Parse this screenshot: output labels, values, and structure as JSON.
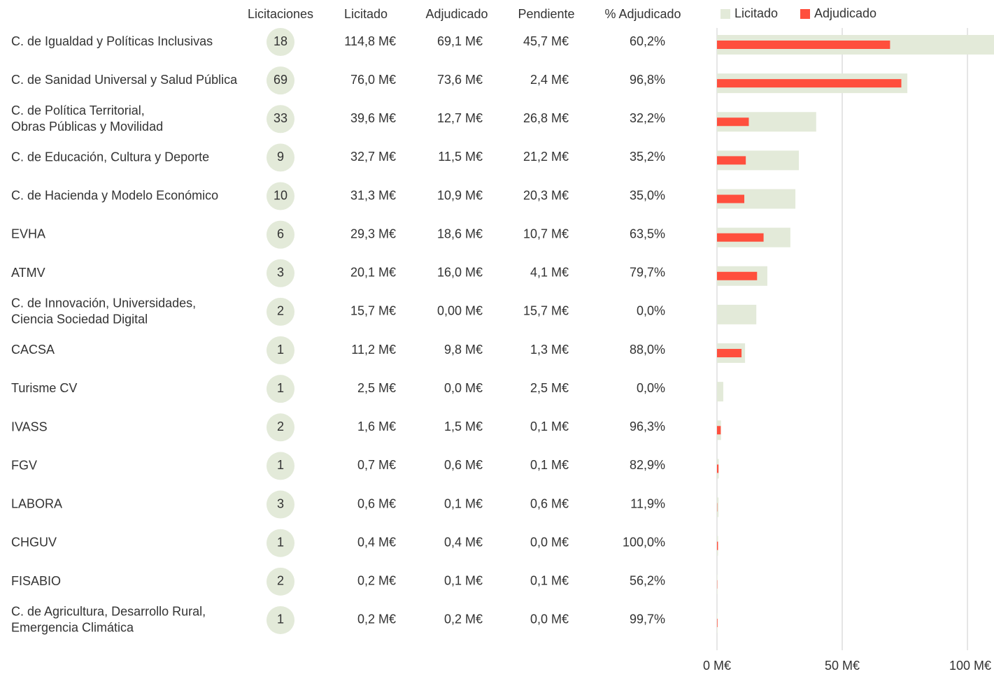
{
  "chart_data": {
    "type": "bar",
    "orientation": "horizontal",
    "headers": [
      "Licitaciones",
      "Licitado",
      "Adjudicado",
      "Pendiente",
      "% Adjudicado"
    ],
    "categories": [
      [
        "C. de Igualdad y Políticas Inclusivas"
      ],
      [
        "C. de Sanidad Universal y Salud Pública"
      ],
      [
        "C. de Política Territorial,",
        "Obras Públicas y Movilidad"
      ],
      [
        "C. de Educación, Cultura y Deporte"
      ],
      [
        "C. de Hacienda y Modelo Económico"
      ],
      [
        "EVHA"
      ],
      [
        "ATMV"
      ],
      [
        "C. de Innovación, Universidades,",
        "Ciencia Sociedad Digital"
      ],
      [
        "CACSA"
      ],
      [
        "Turisme CV"
      ],
      [
        "IVASS"
      ],
      [
        "FGV"
      ],
      [
        "LABORA"
      ],
      [
        "CHGUV"
      ],
      [
        "FISABIO"
      ],
      [
        "C. de Agricultura, Desarrollo Rural,",
        "Emergencia Climática"
      ]
    ],
    "licitaciones": [
      18,
      69,
      33,
      9,
      10,
      6,
      3,
      2,
      1,
      1,
      2,
      1,
      3,
      1,
      2,
      1
    ],
    "series": [
      {
        "name": "Licitado",
        "color": "#e3ead9",
        "values": [
          114.8,
          76.0,
          39.6,
          32.7,
          31.3,
          29.3,
          20.1,
          15.7,
          11.2,
          2.5,
          1.6,
          0.7,
          0.6,
          0.4,
          0.2,
          0.2
        ],
        "value_labels": [
          "114,8 M€",
          "76,0 M€",
          "39,6 M€",
          "32,7 M€",
          "31,3 M€",
          "29,3 M€",
          "20,1 M€",
          "15,7 M€",
          "11,2 M€",
          "2,5 M€",
          "1,6 M€",
          "0,7 M€",
          "0,6 M€",
          "0,4 M€",
          "0,2 M€",
          "0,2 M€"
        ]
      },
      {
        "name": "Adjudicado",
        "color": "#ff4f3d",
        "values": [
          69.1,
          73.6,
          12.7,
          11.5,
          10.9,
          18.6,
          16.0,
          0,
          9.8,
          0,
          1.5,
          0.6,
          0.1,
          0.4,
          0.1,
          0.2
        ],
        "value_labels": [
          "69,1 M€",
          "73,6 M€",
          "12,7 M€",
          "11,5 M€",
          "10,9 M€",
          "18,6 M€",
          "16,0 M€",
          "0,00 M€",
          "9,8 M€",
          "0,0 M€",
          "1,5 M€",
          "0,6 M€",
          "0,1 M€",
          "0,4 M€",
          "0,1 M€",
          "0,2 M€"
        ]
      }
    ],
    "pendiente": [
      "45,7 M€",
      "2,4 M€",
      "26,8 M€",
      "21,2 M€",
      "20,3 M€",
      "10,7 M€",
      "4,1 M€",
      "15,7 M€",
      "1,3 M€",
      "2,5 M€",
      "0,1 M€",
      "0,1 M€",
      "0,6 M€",
      "0,0 M€",
      "0,1 M€",
      "0,0 M€"
    ],
    "pct_adjudicado": [
      "60,2%",
      "96,8%",
      "32,2%",
      "35,2%",
      "35,0%",
      "63,5%",
      "79,7%",
      "0,0%",
      "88,0%",
      "0,0%",
      "96,3%",
      "82,9%",
      "11,9%",
      "100,0%",
      "56,2%",
      "99,7%"
    ],
    "xlim": [
      0,
      110.6
    ],
    "xticks": [
      {
        "value": 0,
        "label": "0 M€"
      },
      {
        "value": 50,
        "label": "50 M€"
      },
      {
        "value": 100,
        "label": "100 M€"
      }
    ],
    "grid": true,
    "legend": "top-right"
  }
}
